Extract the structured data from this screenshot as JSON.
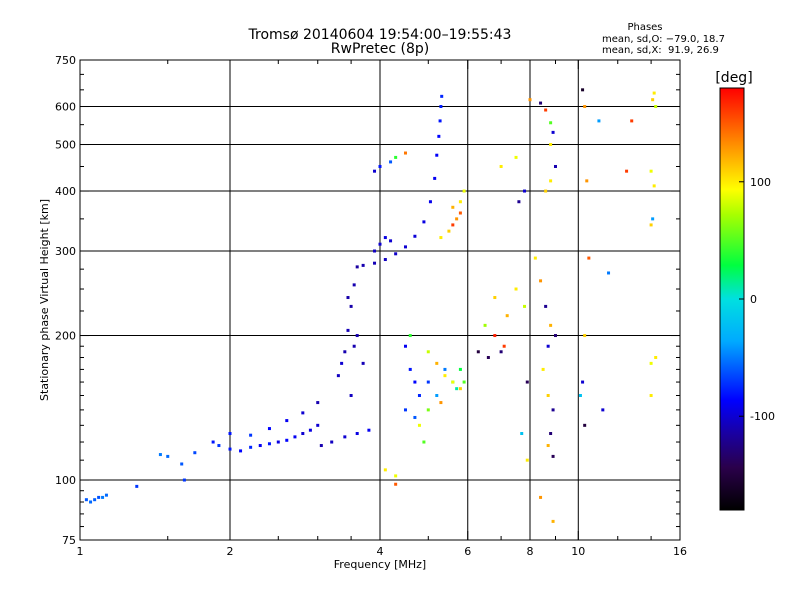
{
  "chart_data": {
    "type": "scatter",
    "title": "Tromsø 20140604 19:54:00–19:55:43",
    "subtitle": "RwPretec (8p)",
    "xlabel": "Frequency [MHz]",
    "ylabel": "Stationary phase Virtual Height [km]",
    "x_scale": "log",
    "y_scale": "log",
    "xlim": [
      1,
      16
    ],
    "ylim": [
      75,
      750
    ],
    "x_ticks": [
      1,
      2,
      4,
      6,
      8,
      10,
      16
    ],
    "y_ticks": [
      75,
      100,
      200,
      300,
      400,
      500,
      600,
      750
    ],
    "grid_x": [
      2,
      4,
      6,
      8,
      10
    ],
    "grid_y": [
      100,
      200,
      300,
      400,
      500,
      600
    ],
    "colorbar": {
      "label": "[deg]",
      "ticks": [
        100,
        0,
        -100
      ],
      "range": [
        -180,
        180
      ],
      "colormap": "rainbow"
    },
    "stats": {
      "heading": "Phases",
      "o_line": "mean, sd,O: −79.0, 18.7",
      "x_line": "mean, sd,X:  91.9, 26.9"
    },
    "series": [
      {
        "points": [
          [
            1.03,
            91,
            -60
          ],
          [
            1.05,
            90,
            -55
          ],
          [
            1.07,
            91,
            -58
          ],
          [
            1.09,
            92,
            -62
          ],
          [
            1.11,
            92,
            -50
          ],
          [
            1.13,
            93,
            -55
          ],
          [
            1.3,
            97,
            -70
          ],
          [
            1.45,
            113,
            -50
          ],
          [
            1.5,
            112,
            -55
          ],
          [
            1.6,
            108,
            -60
          ],
          [
            1.62,
            100,
            -70
          ],
          [
            1.7,
            114,
            -65
          ],
          [
            1.85,
            120,
            -80
          ],
          [
            1.9,
            118,
            -70
          ],
          [
            2.0,
            116,
            -80
          ],
          [
            2.1,
            115,
            -85
          ],
          [
            2.2,
            117,
            -75
          ],
          [
            2.3,
            118,
            -90
          ],
          [
            2.4,
            119,
            -80
          ],
          [
            2.5,
            120,
            -95
          ],
          [
            2.6,
            121,
            -85
          ],
          [
            2.7,
            123,
            -90
          ],
          [
            2.8,
            125,
            -100
          ],
          [
            2.9,
            127,
            -95
          ],
          [
            3.0,
            130,
            -100
          ],
          [
            2.0,
            125,
            -80
          ],
          [
            2.2,
            124,
            -70
          ],
          [
            2.4,
            128,
            -85
          ],
          [
            2.6,
            133,
            -90
          ],
          [
            2.8,
            138,
            -100
          ],
          [
            3.0,
            145,
            -110
          ],
          [
            3.05,
            118,
            -110
          ],
          [
            3.2,
            120,
            -105
          ],
          [
            3.4,
            123,
            -100
          ],
          [
            3.6,
            125,
            -95
          ],
          [
            3.8,
            127,
            -90
          ],
          [
            3.3,
            165,
            -105
          ],
          [
            3.4,
            185,
            -110
          ],
          [
            3.45,
            205,
            -108
          ],
          [
            3.5,
            230,
            -112
          ],
          [
            3.55,
            255,
            -110
          ],
          [
            3.6,
            278,
            -115
          ],
          [
            3.35,
            175,
            -100
          ],
          [
            3.5,
            150,
            -105
          ],
          [
            3.6,
            200,
            -110
          ],
          [
            3.7,
            175,
            -108
          ],
          [
            3.45,
            240,
            -112
          ],
          [
            3.55,
            190,
            -110
          ],
          [
            3.7,
            280,
            -110
          ],
          [
            3.9,
            283,
            -108
          ],
          [
            4.1,
            288,
            -105
          ],
          [
            4.3,
            296,
            -103
          ],
          [
            4.5,
            306,
            -100
          ],
          [
            4.7,
            322,
            -98
          ],
          [
            4.9,
            345,
            -95
          ],
          [
            5.05,
            380,
            -92
          ],
          [
            5.15,
            425,
            -90
          ],
          [
            5.2,
            475,
            -88
          ],
          [
            5.25,
            520,
            -85
          ],
          [
            5.28,
            560,
            -80
          ],
          [
            5.3,
            600,
            -78
          ],
          [
            5.32,
            630,
            -75
          ],
          [
            4.0,
            310,
            -100
          ],
          [
            4.1,
            320,
            -95
          ],
          [
            4.2,
            315,
            -100
          ],
          [
            3.9,
            300,
            -105
          ],
          [
            3.9,
            440,
            -100
          ],
          [
            4.0,
            450,
            -80
          ],
          [
            4.2,
            460,
            -60
          ],
          [
            4.3,
            470,
            40
          ],
          [
            4.5,
            480,
            140
          ],
          [
            4.5,
            190,
            -90
          ],
          [
            4.6,
            170,
            -80
          ],
          [
            4.7,
            160,
            -85
          ],
          [
            4.8,
            150,
            -75
          ],
          [
            4.5,
            140,
            -70
          ],
          [
            4.7,
            135,
            -60
          ],
          [
            5.0,
            160,
            -70
          ],
          [
            5.2,
            150,
            -40
          ],
          [
            5.4,
            170,
            -50
          ],
          [
            5.6,
            160,
            20
          ],
          [
            4.6,
            200,
            40
          ],
          [
            5.0,
            185,
            80
          ],
          [
            5.2,
            175,
            120
          ],
          [
            5.4,
            165,
            100
          ],
          [
            5.6,
            160,
            90
          ],
          [
            5.8,
            155,
            110
          ],
          [
            5.0,
            140,
            60
          ],
          [
            4.8,
            130,
            90
          ],
          [
            5.3,
            145,
            130
          ],
          [
            4.9,
            120,
            50
          ],
          [
            5.3,
            320,
            100
          ],
          [
            5.5,
            330,
            110
          ],
          [
            5.6,
            340,
            160
          ],
          [
            5.7,
            350,
            130
          ],
          [
            5.8,
            360,
            150
          ],
          [
            5.8,
            380,
            100
          ],
          [
            5.9,
            400,
            90
          ],
          [
            5.6,
            370,
            120
          ],
          [
            5.9,
            160,
            50
          ],
          [
            5.8,
            170,
            30
          ],
          [
            5.7,
            155,
            10
          ],
          [
            4.1,
            105,
            100
          ],
          [
            4.3,
            102,
            90
          ],
          [
            4.3,
            98,
            150
          ],
          [
            6.3,
            185,
            -150
          ],
          [
            6.6,
            180,
            -140
          ],
          [
            7.0,
            185,
            -130
          ],
          [
            6.8,
            200,
            170
          ],
          [
            7.1,
            190,
            160
          ],
          [
            6.8,
            240,
            110
          ],
          [
            7.2,
            220,
            120
          ],
          [
            7.5,
            250,
            100
          ],
          [
            7.8,
            230,
            80
          ],
          [
            6.5,
            210,
            70
          ],
          [
            7.0,
            450,
            100
          ],
          [
            7.5,
            470,
            90
          ],
          [
            7.8,
            400,
            -100
          ],
          [
            7.6,
            380,
            -120
          ],
          [
            8.0,
            620,
            130
          ],
          [
            8.4,
            610,
            -130
          ],
          [
            8.6,
            590,
            160
          ],
          [
            8.8,
            555,
            50
          ],
          [
            8.9,
            530,
            -100
          ],
          [
            8.8,
            500,
            100
          ],
          [
            9.0,
            450,
            -110
          ],
          [
            8.8,
            420,
            100
          ],
          [
            8.6,
            400,
            110
          ],
          [
            8.2,
            290,
            100
          ],
          [
            8.4,
            260,
            130
          ],
          [
            8.6,
            230,
            -120
          ],
          [
            8.8,
            210,
            120
          ],
          [
            9.0,
            200,
            -130
          ],
          [
            8.7,
            190,
            -100
          ],
          [
            8.5,
            170,
            100
          ],
          [
            8.7,
            150,
            110
          ],
          [
            8.9,
            140,
            -120
          ],
          [
            8.8,
            125,
            -130
          ],
          [
            8.7,
            118,
            120
          ],
          [
            8.9,
            112,
            -140
          ],
          [
            8.4,
            92,
            130
          ],
          [
            8.9,
            82,
            120
          ],
          [
            7.9,
            110,
            100
          ],
          [
            7.7,
            125,
            -20
          ],
          [
            7.9,
            160,
            -140
          ],
          [
            10.2,
            650,
            -160
          ],
          [
            10.3,
            600,
            130
          ],
          [
            10.4,
            420,
            130
          ],
          [
            10.5,
            290,
            150
          ],
          [
            10.3,
            200,
            110
          ],
          [
            10.2,
            160,
            -100
          ],
          [
            10.3,
            130,
            -150
          ],
          [
            10.1,
            150,
            -20
          ],
          [
            11.0,
            560,
            -40
          ],
          [
            12.8,
            560,
            160
          ],
          [
            12.5,
            440,
            160
          ],
          [
            14.2,
            640,
            100
          ],
          [
            14.1,
            620,
            110
          ],
          [
            14.3,
            600,
            80
          ],
          [
            14.0,
            440,
            90
          ],
          [
            14.2,
            410,
            100
          ],
          [
            14.1,
            350,
            -40
          ],
          [
            14.0,
            340,
            110
          ],
          [
            14.3,
            180,
            100
          ],
          [
            14.0,
            175,
            90
          ],
          [
            11.5,
            270,
            -50
          ],
          [
            11.2,
            140,
            -100
          ],
          [
            14.0,
            150,
            100
          ]
        ]
      }
    ]
  }
}
